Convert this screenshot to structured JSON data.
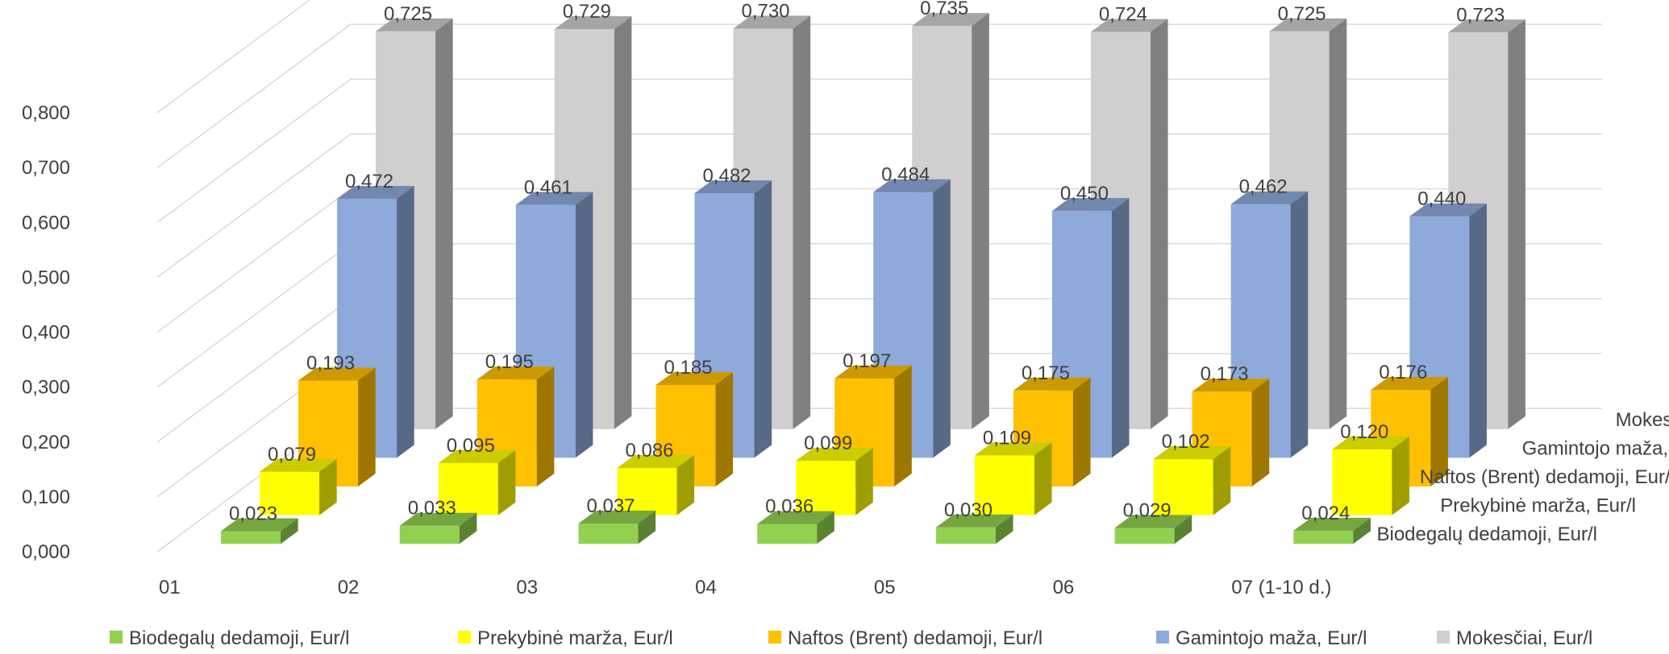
{
  "chart_data": {
    "type": "bar",
    "subtype": "3d-column",
    "categories": [
      "01",
      "02",
      "03",
      "04",
      "05",
      "06",
      "07 (1-10 d.)"
    ],
    "series": [
      {
        "name": "Biodegalų dedamoji, Eur/l",
        "color": "#92d050",
        "labels": [
          "0,023",
          "0,033",
          "0,037",
          "0,036",
          "0,030",
          "0,029",
          "0,024"
        ],
        "values": [
          0.023,
          0.033,
          0.037,
          0.036,
          0.03,
          0.029,
          0.024
        ]
      },
      {
        "name": "Prekybinė marža, Eur/l",
        "color": "#ffff00",
        "labels": [
          "0,079",
          "0,095",
          "0,086",
          "0,099",
          "0,109",
          "0,102",
          "0,120"
        ],
        "values": [
          0.079,
          0.095,
          0.086,
          0.099,
          0.109,
          0.102,
          0.12
        ]
      },
      {
        "name": "Naftos (Brent) dedamoji, Eur/l",
        "color": "#ffc000",
        "labels": [
          "0,193",
          "0,195",
          "0,185",
          "0,197",
          "0,175",
          "0,173",
          "0,176"
        ],
        "values": [
          0.193,
          0.195,
          0.185,
          0.197,
          0.175,
          0.173,
          0.176
        ]
      },
      {
        "name": "Gamintojo maža, Eur/l",
        "color": "#8eaadb",
        "labels": [
          "0,472",
          "0,461",
          "0,482",
          "0,484",
          "0,450",
          "0,462",
          "0,440"
        ],
        "values": [
          0.472,
          0.461,
          0.482,
          0.484,
          0.45,
          0.462,
          0.44
        ]
      },
      {
        "name": "Mokesčiai, Eur/l",
        "color": "#d0cece",
        "labels": [
          "0,725",
          "0,729",
          "0,730",
          "0,735",
          "0,724",
          "0,725",
          "0,723"
        ],
        "values": [
          0.725,
          0.729,
          0.73,
          0.735,
          0.724,
          0.725,
          0.723
        ]
      }
    ],
    "y_ticks": [
      "0,000",
      "0,100",
      "0,200",
      "0,300",
      "0,400",
      "0,500",
      "0,600",
      "0,700",
      "0,800"
    ],
    "ylim": [
      0,
      0.8
    ],
    "grid": true,
    "legend_position": "bottom"
  }
}
